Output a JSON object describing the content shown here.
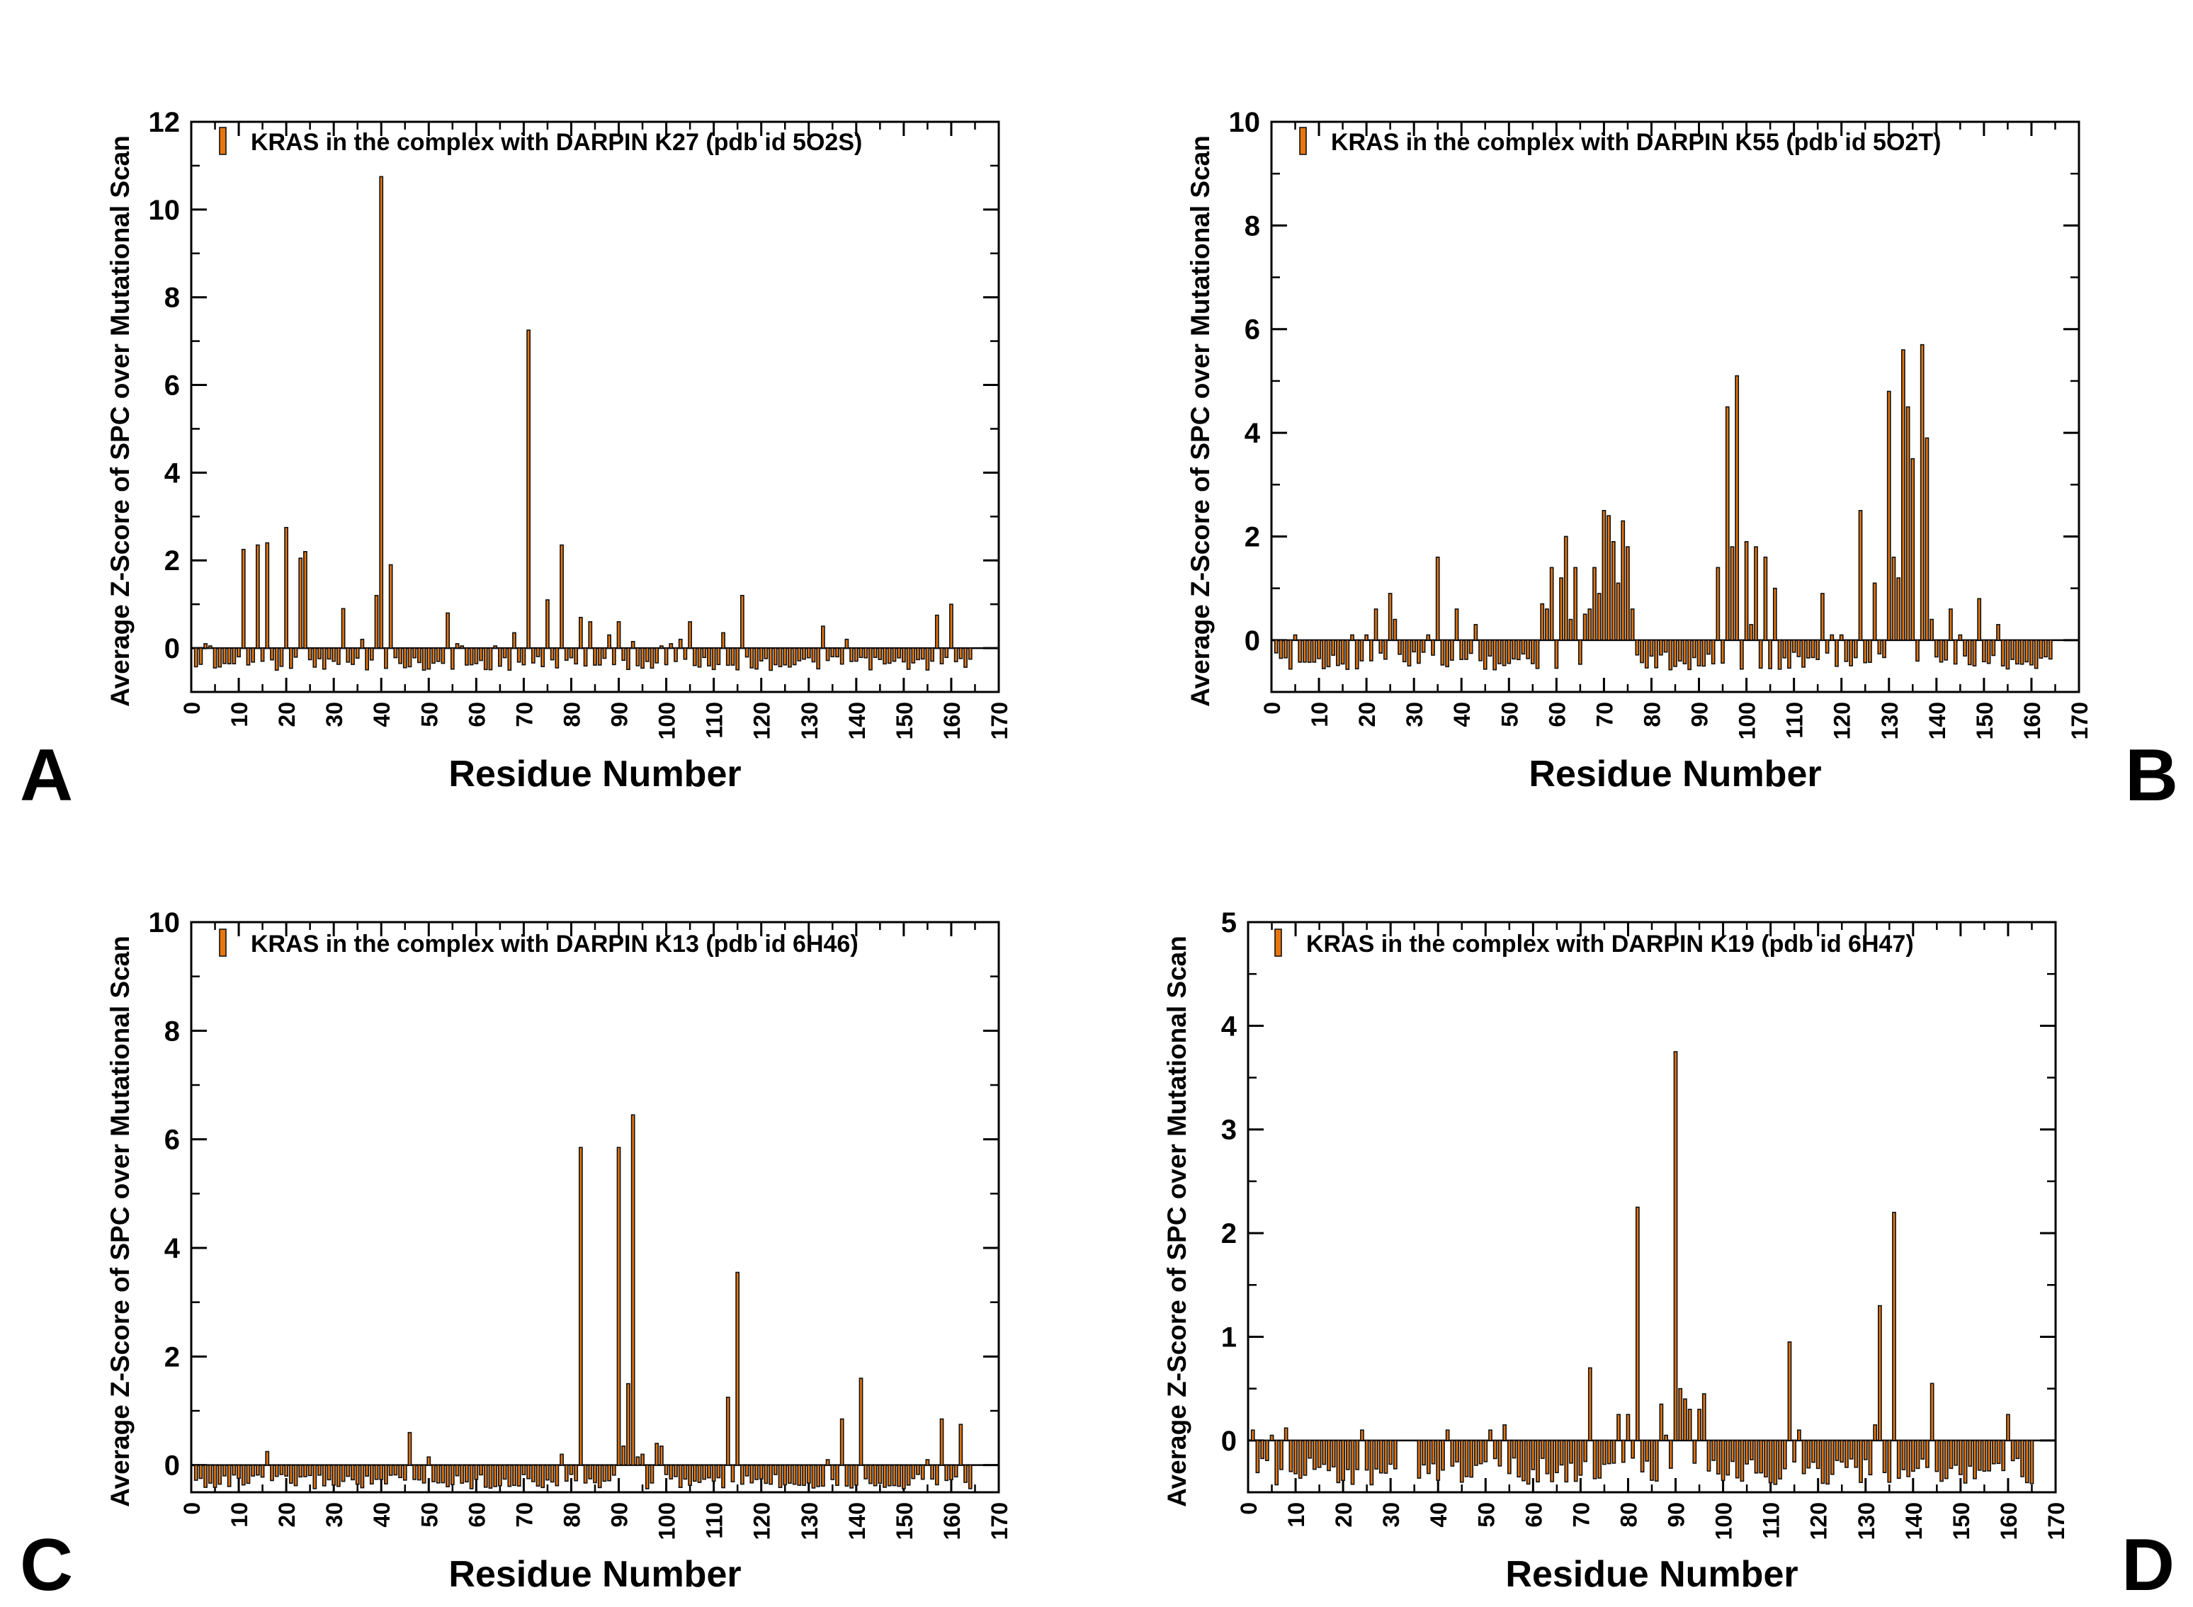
{
  "figure": {
    "colors": {
      "bar_fill": "#E8760C",
      "bar_stroke": "#111111",
      "axis": "#000000",
      "background": "#FFFFFF"
    }
  },
  "chart_data": [
    {
      "type": "bar",
      "panel_label": "A",
      "legend": "KRAS in the complex with DARPIN K27 (pdb id 5O2S)",
      "legend_position": "top-left",
      "xlabel": "Residue Number",
      "ylabel": "Average Z-Score of SPC over Mutational Scan",
      "xlim": [
        0,
        170
      ],
      "ylim": [
        -1,
        12
      ],
      "xticks": [
        0,
        10,
        20,
        30,
        40,
        50,
        60,
        70,
        80,
        90,
        100,
        110,
        120,
        130,
        140,
        150,
        160,
        170
      ],
      "yticks": [
        0,
        2,
        4,
        6,
        8,
        10,
        12
      ],
      "x_range": [
        1,
        164
      ],
      "peaks": [
        [
          3,
          0.1
        ],
        [
          4,
          0.05
        ],
        [
          11,
          2.25
        ],
        [
          14,
          2.35
        ],
        [
          16,
          2.4
        ],
        [
          20,
          2.75
        ],
        [
          23,
          2.05
        ],
        [
          24,
          2.2
        ],
        [
          32,
          0.9
        ],
        [
          36,
          0.2
        ],
        [
          39,
          1.2
        ],
        [
          40,
          10.75
        ],
        [
          42,
          1.9
        ],
        [
          54,
          0.8
        ],
        [
          56,
          0.1
        ],
        [
          57,
          0.05
        ],
        [
          64,
          0.05
        ],
        [
          68,
          0.35
        ],
        [
          71,
          7.25
        ],
        [
          75,
          1.1
        ],
        [
          78,
          2.35
        ],
        [
          82,
          0.7
        ],
        [
          84,
          0.6
        ],
        [
          88,
          0.3
        ],
        [
          90,
          0.6
        ],
        [
          93,
          0.15
        ],
        [
          99,
          0.05
        ],
        [
          101,
          0.1
        ],
        [
          103,
          0.2
        ],
        [
          105,
          0.6
        ],
        [
          112,
          0.35
        ],
        [
          116,
          1.2
        ],
        [
          133,
          0.5
        ],
        [
          138,
          0.2
        ],
        [
          157,
          0.75
        ],
        [
          160,
          1.0
        ]
      ],
      "default_value": -0.35
    },
    {
      "type": "bar",
      "panel_label": "B",
      "legend": "KRAS in the complex with DARPIN K55 (pdb id 5O2T)",
      "legend_position": "top-left",
      "xlabel": "Residue Number",
      "ylabel": "Average Z-Score of SPC over Mutational Scan",
      "xlim": [
        0,
        170
      ],
      "ylim": [
        -1,
        10
      ],
      "xticks": [
        0,
        10,
        20,
        30,
        40,
        50,
        60,
        70,
        80,
        90,
        100,
        110,
        120,
        130,
        140,
        150,
        160,
        170
      ],
      "yticks": [
        0,
        2,
        4,
        6,
        8,
        10
      ],
      "x_range": [
        1,
        164
      ],
      "peaks": [
        [
          5,
          0.1
        ],
        [
          17,
          0.1
        ],
        [
          20,
          0.1
        ],
        [
          22,
          0.6
        ],
        [
          25,
          0.9
        ],
        [
          26,
          0.4
        ],
        [
          33,
          0.1
        ],
        [
          35,
          1.6
        ],
        [
          39,
          0.6
        ],
        [
          43,
          0.3
        ],
        [
          57,
          0.7
        ],
        [
          58,
          0.6
        ],
        [
          59,
          1.4
        ],
        [
          61,
          1.2
        ],
        [
          62,
          2.0
        ],
        [
          63,
          0.4
        ],
        [
          64,
          1.4
        ],
        [
          66,
          0.5
        ],
        [
          67,
          0.6
        ],
        [
          68,
          1.4
        ],
        [
          69,
          0.9
        ],
        [
          70,
          2.5
        ],
        [
          71,
          2.4
        ],
        [
          72,
          1.9
        ],
        [
          73,
          1.1
        ],
        [
          74,
          2.3
        ],
        [
          75,
          1.8
        ],
        [
          76,
          0.6
        ],
        [
          94,
          1.4
        ],
        [
          96,
          4.5
        ],
        [
          97,
          1.8
        ],
        [
          98,
          5.1
        ],
        [
          100,
          1.9
        ],
        [
          101,
          0.3
        ],
        [
          102,
          1.8
        ],
        [
          104,
          1.6
        ],
        [
          106,
          1.0
        ],
        [
          116,
          0.9
        ],
        [
          118,
          0.1
        ],
        [
          120,
          0.1
        ],
        [
          124,
          2.5
        ],
        [
          127,
          1.1
        ],
        [
          130,
          4.8
        ],
        [
          131,
          1.6
        ],
        [
          132,
          1.2
        ],
        [
          133,
          5.6
        ],
        [
          134,
          4.5
        ],
        [
          135,
          3.5
        ],
        [
          137,
          5.7
        ],
        [
          138,
          3.9
        ],
        [
          139,
          0.4
        ],
        [
          143,
          0.6
        ],
        [
          145,
          0.1
        ],
        [
          149,
          0.8
        ],
        [
          153,
          0.3
        ]
      ],
      "default_value": -0.4
    },
    {
      "type": "bar",
      "panel_label": "C",
      "legend": "KRAS in the complex with DARPIN K13 (pdb id 6H46)",
      "legend_position": "top-left",
      "xlabel": "Residue Number",
      "ylabel": "Average Z-Score of SPC over Mutational Scan",
      "xlim": [
        0,
        170
      ],
      "ylim": [
        -0.5,
        10
      ],
      "xticks": [
        0,
        10,
        20,
        30,
        40,
        50,
        60,
        70,
        80,
        90,
        100,
        110,
        120,
        130,
        140,
        150,
        160,
        170
      ],
      "yticks": [
        0,
        2,
        4,
        6,
        8,
        10
      ],
      "x_range": [
        1,
        164
      ],
      "peaks": [
        [
          16,
          0.25
        ],
        [
          46,
          0.6
        ],
        [
          50,
          0.15
        ],
        [
          78,
          0.2
        ],
        [
          82,
          5.85
        ],
        [
          90,
          5.85
        ],
        [
          91,
          0.35
        ],
        [
          92,
          1.5
        ],
        [
          93,
          6.45
        ],
        [
          94,
          0.15
        ],
        [
          95,
          0.2
        ],
        [
          98,
          0.4
        ],
        [
          99,
          0.35
        ],
        [
          113,
          1.25
        ],
        [
          115,
          3.55
        ],
        [
          134,
          0.1
        ],
        [
          137,
          0.85
        ],
        [
          141,
          1.6
        ],
        [
          155,
          0.1
        ],
        [
          158,
          0.85
        ],
        [
          162,
          0.75
        ]
      ],
      "default_value": -0.3
    },
    {
      "type": "bar",
      "panel_label": "D",
      "legend": "KRAS in the complex with DARPIN K19 (pdb id 6H47)",
      "legend_position": "top-left",
      "xlabel": "Residue Number",
      "ylabel": "Average Z-Score of SPC over Mutational Scan",
      "xlim": [
        0,
        170
      ],
      "ylim": [
        -0.5,
        5
      ],
      "xticks": [
        0,
        10,
        20,
        30,
        40,
        50,
        60,
        70,
        80,
        90,
        100,
        110,
        120,
        130,
        140,
        150,
        160,
        170
      ],
      "yticks": [
        0,
        1,
        2,
        3,
        4,
        5
      ],
      "x_range": [
        1,
        165
      ],
      "gap": [
        32,
        35
      ],
      "peaks": [
        [
          1,
          0.1
        ],
        [
          5,
          0.05
        ],
        [
          8,
          0.12
        ],
        [
          24,
          0.1
        ],
        [
          42,
          0.1
        ],
        [
          51,
          0.1
        ],
        [
          54,
          0.15
        ],
        [
          72,
          0.7
        ],
        [
          78,
          0.25
        ],
        [
          80,
          0.25
        ],
        [
          82,
          2.25
        ],
        [
          87,
          0.35
        ],
        [
          88,
          0.05
        ],
        [
          90,
          3.75
        ],
        [
          91,
          0.5
        ],
        [
          92,
          0.4
        ],
        [
          93,
          0.3
        ],
        [
          95,
          0.3
        ],
        [
          96,
          0.45
        ],
        [
          114,
          0.95
        ],
        [
          116,
          0.1
        ],
        [
          132,
          0.15
        ],
        [
          133,
          1.3
        ],
        [
          136,
          2.2
        ],
        [
          144,
          0.55
        ],
        [
          160,
          0.25
        ]
      ],
      "default_value": -0.3
    }
  ]
}
